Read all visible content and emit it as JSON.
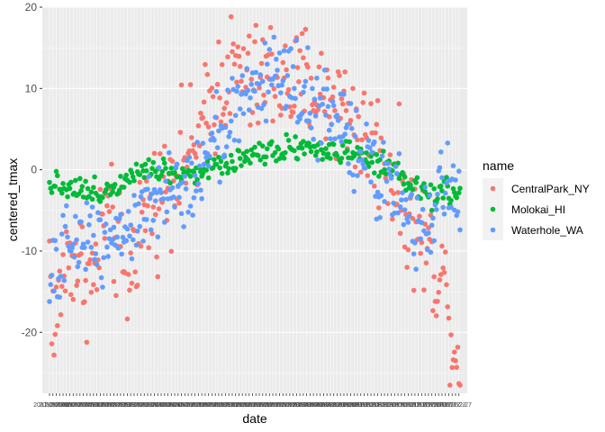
{
  "chart_data": {
    "type": "scatter",
    "title": "",
    "xlabel": "date",
    "ylabel": "centered_tmax",
    "x_domain": [
      "2017-01-01",
      "2017-12-31"
    ],
    "ylim": [
      -27.5,
      20
    ],
    "y_ticks": [
      -20,
      -10,
      0,
      10,
      20
    ],
    "x_tick_labels_overlapping": true,
    "grid": true,
    "legend": {
      "title": "name",
      "position": "right"
    },
    "series": [
      {
        "name": "CentralPark_NY",
        "color": "#F8766D",
        "anchors": [
          [
            1,
            -10
          ],
          [
            5,
            -21
          ],
          [
            12,
            -13
          ],
          [
            20,
            -10
          ],
          [
            30,
            -12
          ],
          [
            40,
            -14
          ],
          [
            50,
            -5
          ],
          [
            60,
            -9
          ],
          [
            70,
            -14
          ],
          [
            80,
            -7
          ],
          [
            90,
            -5
          ],
          [
            100,
            -3
          ],
          [
            110,
            0
          ],
          [
            120,
            2
          ],
          [
            130,
            2
          ],
          [
            140,
            6
          ],
          [
            150,
            10
          ],
          [
            160,
            12
          ],
          [
            170,
            12
          ],
          [
            180,
            10
          ],
          [
            190,
            11
          ],
          [
            200,
            12
          ],
          [
            210,
            10
          ],
          [
            220,
            10
          ],
          [
            230,
            11
          ],
          [
            240,
            9
          ],
          [
            250,
            9
          ],
          [
            260,
            8
          ],
          [
            270,
            6
          ],
          [
            280,
            4
          ],
          [
            290,
            3
          ],
          [
            300,
            1
          ],
          [
            310,
            -2
          ],
          [
            320,
            -6
          ],
          [
            330,
            -8
          ],
          [
            340,
            -11
          ],
          [
            350,
            -13
          ],
          [
            358,
            -20
          ],
          [
            364,
            -24
          ]
        ],
        "noise": 4.5,
        "count": 365
      },
      {
        "name": "Molokai_HI",
        "color": "#00BA38",
        "anchors": [
          [
            1,
            -1.5
          ],
          [
            20,
            -2
          ],
          [
            40,
            -3
          ],
          [
            60,
            -2
          ],
          [
            80,
            0.5
          ],
          [
            100,
            0
          ],
          [
            120,
            -0.5
          ],
          [
            140,
            0
          ],
          [
            160,
            1
          ],
          [
            180,
            2
          ],
          [
            200,
            2.5
          ],
          [
            220,
            3
          ],
          [
            240,
            2.5
          ],
          [
            260,
            2
          ],
          [
            280,
            1.5
          ],
          [
            300,
            0
          ],
          [
            320,
            -2
          ],
          [
            340,
            -3
          ],
          [
            364,
            -3
          ]
        ],
        "noise": 1.0,
        "count": 300
      },
      {
        "name": "Waterhole_WA",
        "color": "#619CFF",
        "anchors": [
          [
            1,
            -15
          ],
          [
            15,
            -10
          ],
          [
            30,
            -8
          ],
          [
            50,
            -8
          ],
          [
            70,
            -7
          ],
          [
            90,
            -5
          ],
          [
            110,
            -4
          ],
          [
            130,
            0
          ],
          [
            150,
            4
          ],
          [
            170,
            8
          ],
          [
            190,
            11
          ],
          [
            200,
            12
          ],
          [
            210,
            12
          ],
          [
            220,
            10
          ],
          [
            230,
            9
          ],
          [
            250,
            6
          ],
          [
            270,
            3
          ],
          [
            290,
            0
          ],
          [
            310,
            -4
          ],
          [
            320,
            -8
          ],
          [
            335,
            -7
          ],
          [
            345,
            -4
          ],
          [
            352,
            0
          ],
          [
            364,
            -4
          ]
        ],
        "noise": 3.2,
        "count": 365
      }
    ]
  }
}
